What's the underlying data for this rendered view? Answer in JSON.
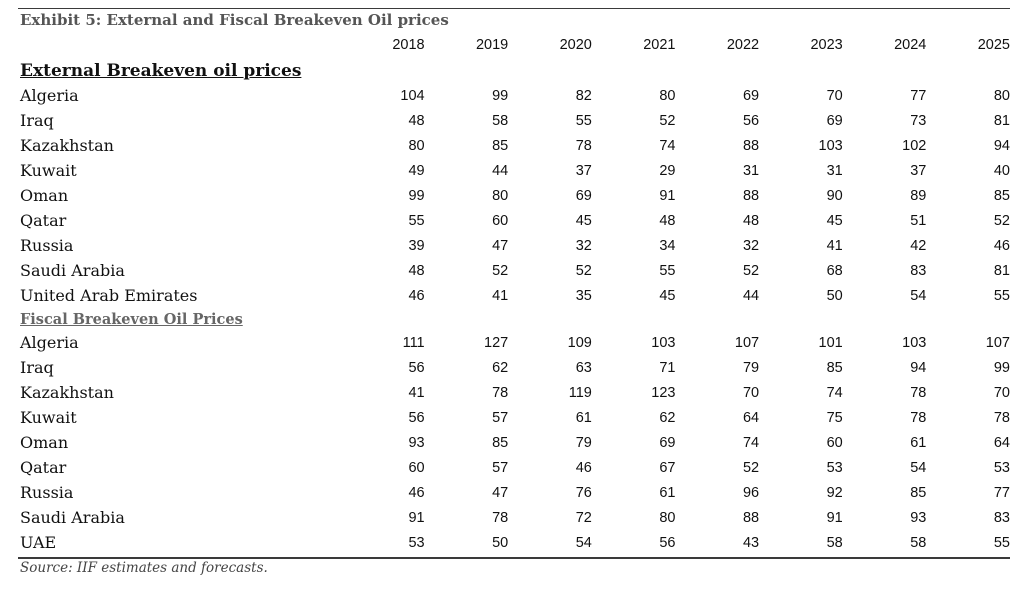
{
  "title": "Exhibit 5: External and Fiscal Breakeven Oil prices",
  "years": [
    "2018",
    "2019",
    "2020",
    "2021",
    "2022",
    "2023",
    "2024",
    "2025"
  ],
  "sections": [
    {
      "heading": "External Breakeven oil prices",
      "rows": [
        {
          "country": "Algeria",
          "values": [
            "104",
            "99",
            "82",
            "80",
            "69",
            "70",
            "77",
            "80"
          ]
        },
        {
          "country": "Iraq",
          "values": [
            "48",
            "58",
            "55",
            "52",
            "56",
            "69",
            "73",
            "81"
          ]
        },
        {
          "country": "Kazakhstan",
          "values": [
            "80",
            "85",
            "78",
            "74",
            "88",
            "103",
            "102",
            "94"
          ]
        },
        {
          "country": "Kuwait",
          "values": [
            "49",
            "44",
            "37",
            "29",
            "31",
            "31",
            "37",
            "40"
          ]
        },
        {
          "country": "Oman",
          "values": [
            "99",
            "80",
            "69",
            "91",
            "88",
            "90",
            "89",
            "85"
          ]
        },
        {
          "country": "Qatar",
          "values": [
            "55",
            "60",
            "45",
            "48",
            "48",
            "45",
            "51",
            "52"
          ]
        },
        {
          "country": "Russia",
          "values": [
            "39",
            "47",
            "32",
            "34",
            "32",
            "41",
            "42",
            "46"
          ]
        },
        {
          "country": "Saudi Arabia",
          "values": [
            "48",
            "52",
            "52",
            "55",
            "52",
            "68",
            "83",
            "81"
          ]
        },
        {
          "country": "United Arab Emirates",
          "values": [
            "46",
            "41",
            "35",
            "45",
            "44",
            "50",
            "54",
            "55"
          ]
        }
      ]
    },
    {
      "heading": "Fiscal Breakeven Oil Prices",
      "rows": [
        {
          "country": "Algeria",
          "values": [
            "111",
            "127",
            "109",
            "103",
            "107",
            "101",
            "103",
            "107"
          ]
        },
        {
          "country": "Iraq",
          "values": [
            "56",
            "62",
            "63",
            "71",
            "79",
            "85",
            "94",
            "99"
          ]
        },
        {
          "country": "Kazakhstan",
          "values": [
            "41",
            "78",
            "119",
            "123",
            "70",
            "74",
            "78",
            "70"
          ]
        },
        {
          "country": "Kuwait",
          "values": [
            "56",
            "57",
            "61",
            "62",
            "64",
            "75",
            "78",
            "78"
          ]
        },
        {
          "country": "Oman",
          "values": [
            "93",
            "85",
            "79",
            "69",
            "74",
            "60",
            "61",
            "64"
          ]
        },
        {
          "country": "Qatar",
          "values": [
            "60",
            "57",
            "46",
            "67",
            "52",
            "53",
            "54",
            "53"
          ]
        },
        {
          "country": "Russia",
          "values": [
            "46",
            "47",
            "76",
            "61",
            "96",
            "92",
            "85",
            "77"
          ]
        },
        {
          "country": "Saudi Arabia",
          "values": [
            "91",
            "78",
            "72",
            "80",
            "88",
            "91",
            "93",
            "83"
          ]
        },
        {
          "country": "UAE",
          "values": [
            "53",
            "50",
            "54",
            "56",
            "43",
            "58",
            "58",
            "55"
          ]
        }
      ]
    }
  ],
  "source": "Source: IIF estimates and forecasts."
}
